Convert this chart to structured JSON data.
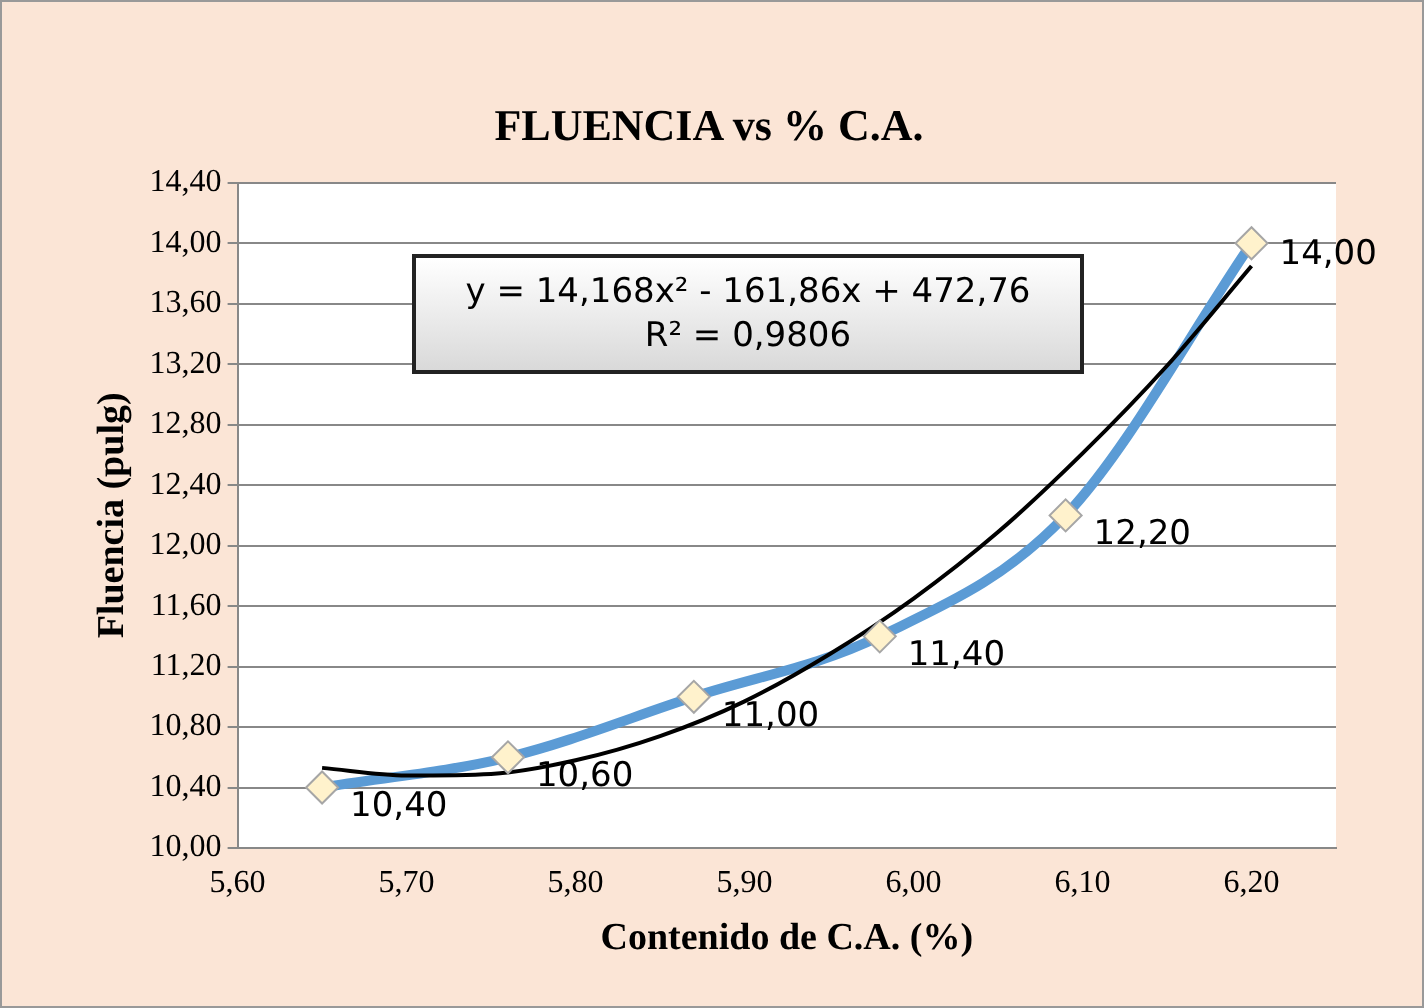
{
  "chart_data": {
    "type": "line",
    "title": "FLUENCIA vs % C.A.",
    "xlabel": "Contenido de C.A. (%)",
    "ylabel": "Fluencia (pulg)",
    "annotations": [
      "y = 14,168x² - 161,86x + 472,76",
      "R² = 0,9806"
    ],
    "series": [
      {
        "type": "line",
        "color": "#5b9bd5",
        "x": [
          5.65,
          5.76,
          5.87,
          5.98,
          6.09,
          6.2
        ],
        "values": [
          10.4,
          10.6,
          11.0,
          11.4,
          12.2,
          14.0
        ],
        "marker": "none"
      },
      {
        "type": "scatter",
        "color": "#fff2cc",
        "x": [
          5.65,
          5.76,
          5.87,
          5.98,
          6.09,
          6.2
        ],
        "values": [
          10.4,
          10.6,
          11.0,
          11.4,
          12.2,
          14.0
        ],
        "value_labels": [
          "10,40",
          "10,60",
          "11,00",
          "11,40",
          "12,20",
          "14,00"
        ],
        "marker": "diamond"
      },
      {
        "type": "line",
        "color": "#000000",
        "x": [
          5.65,
          5.7,
          5.75,
          5.8,
          5.85,
          5.9,
          5.95,
          6.0,
          6.05,
          6.1,
          6.15,
          6.2
        ],
        "values": [
          10.53,
          10.48,
          10.49,
          10.58,
          10.74,
          10.97,
          11.28,
          11.65,
          12.09,
          12.61,
          13.19,
          13.85
        ],
        "marker": "none"
      }
    ],
    "xlim": [
      5.6,
      6.25
    ],
    "xticks": [
      {
        "value": 5.6,
        "label": "5,60"
      },
      {
        "value": 5.7,
        "label": "5,70"
      },
      {
        "value": 5.8,
        "label": "5,80"
      },
      {
        "value": 5.9,
        "label": "5,90"
      },
      {
        "value": 6.0,
        "label": "6,00"
      },
      {
        "value": 6.1,
        "label": "6,10"
      },
      {
        "value": 6.2,
        "label": "6,20"
      }
    ],
    "ylim": [
      10.0,
      14.4
    ],
    "yticks": [
      {
        "value": 10.0,
        "label": "10,00"
      },
      {
        "value": 10.4,
        "label": "10,40"
      },
      {
        "value": 10.8,
        "label": "10,80"
      },
      {
        "value": 11.2,
        "label": "11,20"
      },
      {
        "value": 11.6,
        "label": "11,60"
      },
      {
        "value": 12.0,
        "label": "12,00"
      },
      {
        "value": 12.4,
        "label": "12,40"
      },
      {
        "value": 12.8,
        "label": "12,80"
      },
      {
        "value": 13.2,
        "label": "13,20"
      },
      {
        "value": 13.6,
        "label": "13,60"
      },
      {
        "value": 14.0,
        "label": "14,00"
      },
      {
        "value": 14.4,
        "label": "14,40"
      }
    ],
    "grid": "y",
    "legend": false
  }
}
